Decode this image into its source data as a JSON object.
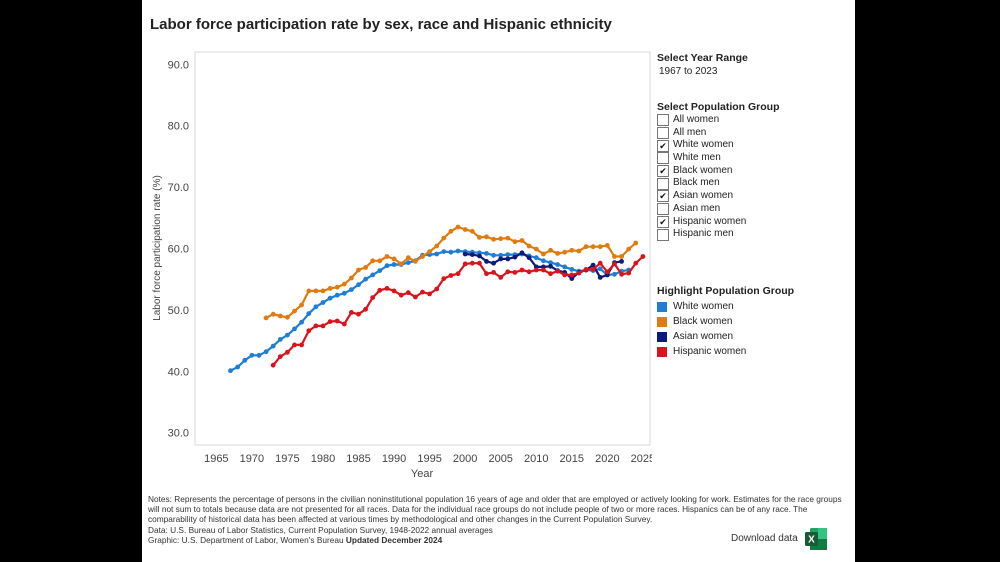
{
  "title": "Labor force participation rate by sex, race and Hispanic ethnicity",
  "controls": {
    "year_range_label": "Select Year Range",
    "year_range_value": "1967 to 2023",
    "population_label": "Select Population Group",
    "population_options": [
      {
        "label": "All women",
        "checked": false,
        "mark": ""
      },
      {
        "label": "All men",
        "checked": false,
        "mark": ""
      },
      {
        "label": "White women",
        "checked": true,
        "mark": "✔"
      },
      {
        "label": "White men",
        "checked": false,
        "mark": ""
      },
      {
        "label": "Black women",
        "checked": true,
        "mark": "✔"
      },
      {
        "label": "Black men",
        "checked": false,
        "mark": ""
      },
      {
        "label": "Asian women",
        "checked": true,
        "mark": "✔"
      },
      {
        "label": "Asian men",
        "checked": false,
        "mark": ""
      },
      {
        "label": "Hispanic women",
        "checked": true,
        "mark": "✔"
      },
      {
        "label": "Hispanic men",
        "checked": false,
        "mark": ""
      }
    ],
    "highlight_label": "Highlight Population Group",
    "highlight_items": [
      {
        "label": "White women",
        "color": "#1f7ed4"
      },
      {
        "label": "Black women",
        "color": "#e07b10"
      },
      {
        "label": "Asian women",
        "color": "#0c1a7a"
      },
      {
        "label": "Hispanic women",
        "color": "#d9141c"
      }
    ]
  },
  "footer": {
    "notes": "Notes: Represents the percentage of persons in the civilian noninstitutional population 16 years of age and older that are employed or actively looking for work. Estimates for the race groups will not sum to totals because data are not presented for all races. Data for the individual race groups do not include people of two or more races. Hispanics can be of any race. The comparability of historical data has been affected at various times by methodological and other changes in the Current Population Survey.",
    "data_source": "Data: U.S. Bureau of Labor Statistics,  Current Population Survey, 1948-2022 annual averages",
    "graphic_prefix": "Graphic: U.S. Department of Labor, Women's Bureau ",
    "updated": "Updated December 2024",
    "download": "Download data",
    "excel_letter": "X"
  },
  "chart_data": {
    "type": "line",
    "title": "Labor force participation rate by sex, race and Hispanic ethnicity",
    "xlabel": "Year",
    "ylabel": "Labor force participation rate (%)",
    "xlim": [
      1962,
      2026
    ],
    "ylim": [
      28,
      92
    ],
    "xticks": [
      1965,
      1970,
      1975,
      1980,
      1985,
      1990,
      1995,
      2000,
      2005,
      2010,
      2015,
      2020,
      2025
    ],
    "yticks": [
      30.0,
      40.0,
      50.0,
      60.0,
      70.0,
      80.0,
      90.0
    ],
    "series": [
      {
        "name": "White women",
        "color": "#1f7ed4",
        "start": 1967,
        "values": [
          40.1,
          40.7,
          41.8,
          42.6,
          42.6,
          43.2,
          44.1,
          45.2,
          45.9,
          46.9,
          48.0,
          49.4,
          50.5,
          51.2,
          51.9,
          52.4,
          52.7,
          53.3,
          54.1,
          55.0,
          55.7,
          56.4,
          57.2,
          57.4,
          57.4,
          57.7,
          58.0,
          58.9,
          59.0,
          59.1,
          59.5,
          59.4,
          59.6,
          59.5,
          59.4,
          59.3,
          59.2,
          58.9,
          58.9,
          59.0,
          59.0,
          59.1,
          58.8,
          58.5,
          58.0,
          57.7,
          57.4,
          57.0,
          56.6,
          56.3,
          56.5,
          56.4,
          56.7,
          55.7,
          55.8,
          56.3,
          56.5
        ]
      },
      {
        "name": "Black women",
        "color": "#e07b10",
        "start": 1972,
        "values": [
          48.7,
          49.3,
          49.0,
          48.8,
          49.8,
          50.8,
          53.1,
          53.1,
          53.1,
          53.5,
          53.7,
          54.2,
          55.2,
          56.5,
          56.9,
          58.0,
          58.0,
          58.7,
          58.3,
          57.5,
          58.5,
          57.9,
          58.7,
          59.5,
          60.4,
          61.7,
          62.8,
          63.5,
          63.1,
          62.8,
          61.8,
          61.9,
          61.5,
          61.6,
          61.7,
          61.1,
          61.3,
          60.4,
          59.9,
          59.1,
          59.7,
          59.2,
          59.4,
          59.7,
          59.6,
          60.3,
          60.3,
          60.3,
          60.5,
          58.7,
          58.7,
          59.9,
          60.9
        ]
      },
      {
        "name": "Asian women",
        "color": "#0c1a7a",
        "start": 2000,
        "values": [
          59.1,
          59.0,
          58.8,
          57.9,
          57.6,
          58.3,
          58.3,
          58.6,
          59.3,
          58.5,
          57.0,
          57.0,
          57.1,
          56.4,
          56.1,
          55.1,
          56.1,
          56.5,
          57.3,
          55.3,
          55.7,
          57.7,
          57.9
        ]
      },
      {
        "name": "Hispanic women",
        "color": "#d9141c",
        "start": 1973,
        "values": [
          41.0,
          42.4,
          43.1,
          44.3,
          44.3,
          46.6,
          47.4,
          47.4,
          48.1,
          48.2,
          47.7,
          49.6,
          49.3,
          50.1,
          52.0,
          53.2,
          53.5,
          53.1,
          52.4,
          52.8,
          52.1,
          52.9,
          52.6,
          53.4,
          55.1,
          55.6,
          55.9,
          57.5,
          57.6,
          57.6,
          55.9,
          56.1,
          55.3,
          56.2,
          56.1,
          56.5,
          56.2,
          56.5,
          56.5,
          55.9,
          56.3,
          55.7,
          55.7,
          56.0,
          56.6,
          56.6,
          57.6,
          56.2,
          57.5,
          55.8,
          56.0,
          57.6,
          58.7
        ]
      }
    ]
  }
}
